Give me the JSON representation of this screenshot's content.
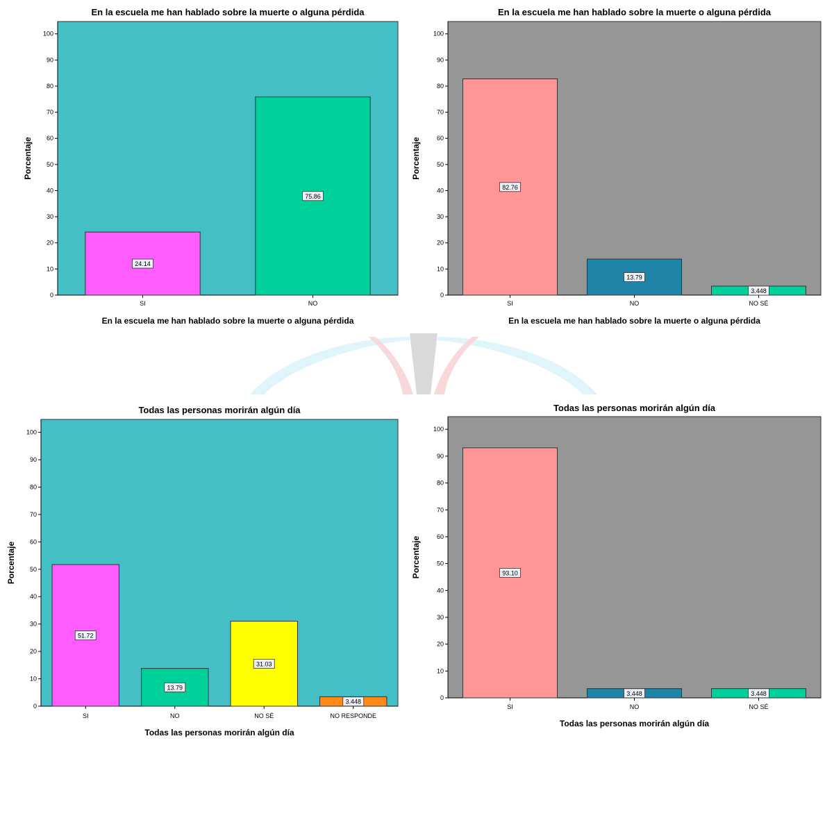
{
  "colors": {
    "teal_bg": "#45bfc6",
    "gray_bg": "#969696",
    "magenta": "#ff5cff",
    "green": "#00d09a",
    "salmon": "#ff9595",
    "dark_teal": "#1e84a8",
    "yellow": "#ffff00",
    "orange": "#ff8a1a",
    "label_box": "#e8eef6"
  },
  "chart_data": [
    {
      "type": "bar",
      "title": "En la escuela me han hablado sobre la muerte o alguna pérdida",
      "xlabel": "En la escuela me han hablado sobre la muerte o alguna pérdida",
      "ylabel": "Porcentaje",
      "categories": [
        "SI",
        "NO"
      ],
      "values": [
        24.14,
        75.86
      ],
      "labels": [
        "24.14",
        "75.86"
      ],
      "bar_colors": [
        "#ff5cff",
        "#00d09a"
      ],
      "background": "#45bfc6",
      "ylim": [
        0,
        100
      ],
      "yticks": [
        0,
        10,
        20,
        30,
        40,
        50,
        60,
        70,
        80,
        90,
        100
      ],
      "grid": false
    },
    {
      "type": "bar",
      "title": "En la escuela me han hablado sobre la muerte o alguna pérdida",
      "xlabel": "En la escuela me han hablado sobre la muerte o alguna pérdida",
      "ylabel": "Porcentaje",
      "categories": [
        "SI",
        "NO",
        "NO SÉ"
      ],
      "values": [
        82.76,
        13.79,
        3.448
      ],
      "labels": [
        "82.76",
        "13.79",
        "3.448"
      ],
      "bar_colors": [
        "#ff9595",
        "#1e84a8",
        "#00d09a"
      ],
      "background": "#969696",
      "ylim": [
        0,
        100
      ],
      "yticks": [
        0,
        10,
        20,
        30,
        40,
        50,
        60,
        70,
        80,
        90,
        100
      ],
      "grid": false
    },
    {
      "type": "bar",
      "title": "Todas las personas morirán algún día",
      "xlabel": "Todas las personas morirán algún día",
      "ylabel": "Porcentaje",
      "categories": [
        "SI",
        "NO",
        "NO SÉ",
        "NO RESPONDE"
      ],
      "values": [
        51.72,
        13.79,
        31.03,
        3.448
      ],
      "labels": [
        "51.72",
        "13.79",
        "31.03",
        "3.448"
      ],
      "bar_colors": [
        "#ff5cff",
        "#00d09a",
        "#ffff00",
        "#ff8a1a"
      ],
      "background": "#45bfc6",
      "ylim": [
        0,
        100
      ],
      "yticks": [
        0,
        10,
        20,
        30,
        40,
        50,
        60,
        70,
        80,
        90,
        100
      ],
      "grid": false
    },
    {
      "type": "bar",
      "title": "Todas las personas morirán algún día",
      "xlabel": "Todas las personas morirán algún día",
      "ylabel": "Porcentaje",
      "categories": [
        "SI",
        "NO",
        "NO SÉ"
      ],
      "values": [
        93.1,
        3.448,
        3.448
      ],
      "labels": [
        "93.10",
        "3.448",
        "3.448"
      ],
      "bar_colors": [
        "#ff9595",
        "#1e84a8",
        "#00d09a"
      ],
      "background": "#969696",
      "ylim": [
        0,
        100
      ],
      "yticks": [
        0,
        10,
        20,
        30,
        40,
        50,
        60,
        70,
        80,
        90,
        100
      ],
      "grid": false
    }
  ]
}
